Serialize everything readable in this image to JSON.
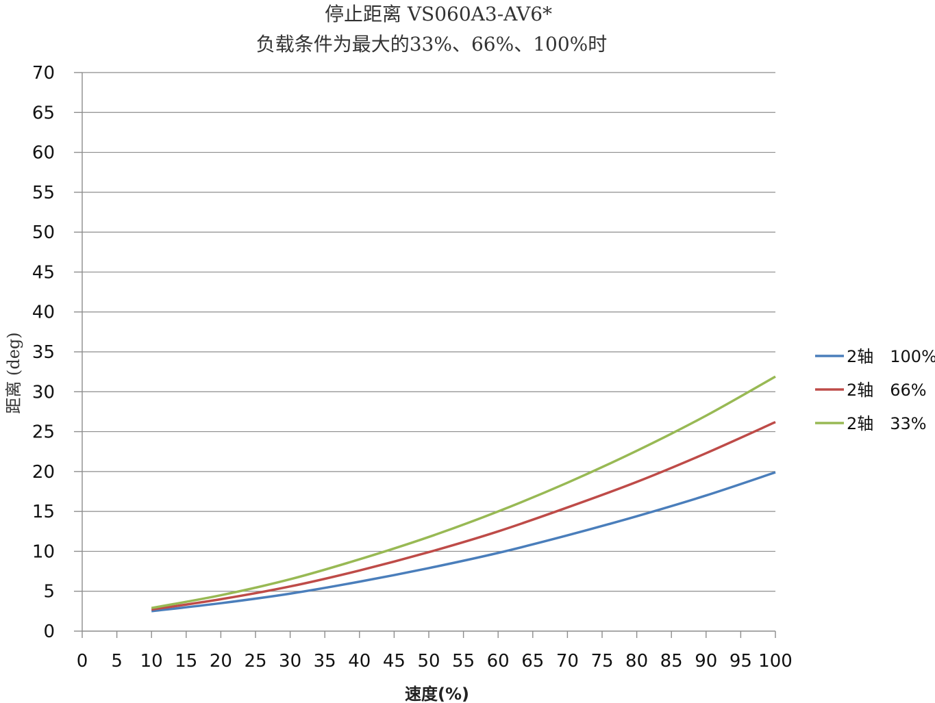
{
  "chart_data": {
    "type": "line",
    "title": "停止距离 VS060A3-AV6*",
    "subtitle": "负载条件为最大的33%、66%、100%时",
    "xlabel": "速度(%)",
    "ylabel": "距离 (deg)",
    "xlim": [
      0,
      100
    ],
    "ylim": [
      0,
      70
    ],
    "x_ticks": [
      "0",
      "5",
      "10",
      "15",
      "20",
      "25",
      "30",
      "35",
      "40",
      "45",
      "50",
      "55",
      "60",
      "65",
      "70",
      "75",
      "80",
      "85",
      "90",
      "95",
      "100"
    ],
    "y_ticks": [
      "0",
      "5",
      "10",
      "15",
      "20",
      "25",
      "30",
      "35",
      "40",
      "45",
      "50",
      "55",
      "60",
      "65",
      "70"
    ],
    "x": [
      10,
      20,
      30,
      40,
      50,
      60,
      70,
      80,
      90,
      100
    ],
    "series": [
      {
        "name": "2轴　100%",
        "color": "#4a7ebb",
        "values": [
          2.5,
          3.5,
          4.7,
          6.2,
          7.9,
          9.8,
          12.0,
          14.4,
          17.0,
          19.9
        ]
      },
      {
        "name": "2轴　66%",
        "color": "#be4b48",
        "values": [
          2.7,
          4.0,
          5.6,
          7.6,
          9.9,
          12.5,
          15.5,
          18.7,
          22.3,
          26.2
        ]
      },
      {
        "name": "2轴　33%",
        "color": "#98b954",
        "values": [
          2.9,
          4.5,
          6.5,
          9.0,
          11.8,
          15.0,
          18.6,
          22.6,
          27.0,
          31.9
        ]
      }
    ],
    "grid": true,
    "legend_position": "right"
  }
}
